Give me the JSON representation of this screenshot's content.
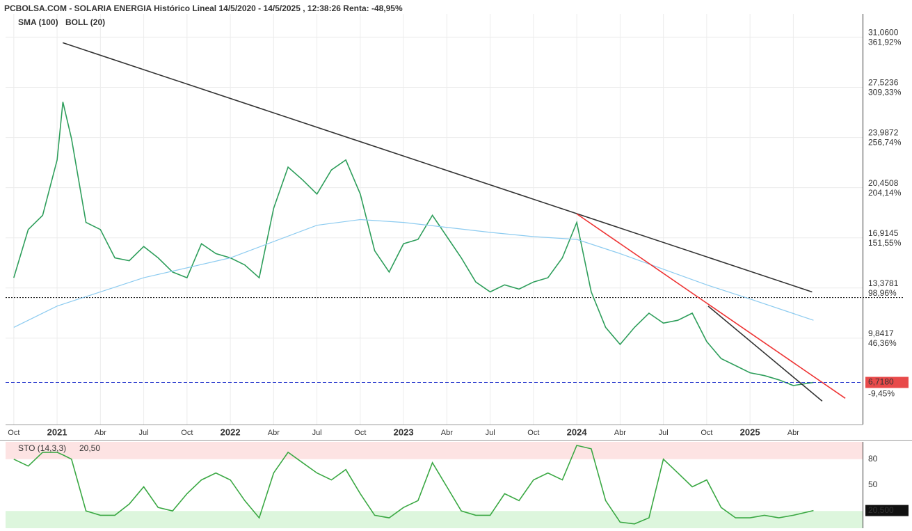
{
  "chart_data": [
    {
      "type": "line",
      "title": "PCBOLSA.COM - SOLARIA ENERGIA Histórico Lineal 14/5/2020 - 14/5/2025 , 12:38:26 Renta: -48,95%",
      "boll_label": "BOLL (20)",
      "xlim": [
        -3.57,
        55.8
      ],
      "xticks": [
        {
          "value": -3,
          "label": "Oct"
        },
        {
          "value": 0,
          "label": "2021"
        },
        {
          "value": 3,
          "label": "Abr"
        },
        {
          "value": 6,
          "label": "Jul"
        },
        {
          "value": 9,
          "label": "Oct"
        },
        {
          "value": 12,
          "label": "2022"
        },
        {
          "value": 15,
          "label": "Abr"
        },
        {
          "value": 18,
          "label": "Jul"
        },
        {
          "value": 21,
          "label": "Oct"
        },
        {
          "value": 24,
          "label": "2023"
        },
        {
          "value": 27,
          "label": "Abr"
        },
        {
          "value": 30,
          "label": "Jul"
        },
        {
          "value": 33,
          "label": "Oct"
        },
        {
          "value": 36,
          "label": "2024"
        },
        {
          "value": 39,
          "label": "Abr"
        },
        {
          "value": 42,
          "label": "Jul"
        },
        {
          "value": 45,
          "label": "Oct"
        },
        {
          "value": 48,
          "label": "2025"
        },
        {
          "value": 51,
          "label": "Abr"
        }
      ],
      "ylim": [
        3.75,
        32.7
      ],
      "yticks": [
        {
          "value": 31.06,
          "label": "31,0600"
        },
        {
          "value": 27.5236,
          "label": "27,5236"
        },
        {
          "value": 23.9872,
          "label": "23,9872"
        },
        {
          "value": 20.4508,
          "label": "20,4508"
        },
        {
          "value": 16.9145,
          "label": "16,9145"
        },
        {
          "value": 13.3781,
          "label": "13,3781"
        },
        {
          "value": 9.8417,
          "label": "9,8417"
        }
      ],
      "ytick_pct_labels": [
        "361,92%",
        "309,33%",
        "256,74%",
        "204,14%",
        "151,55%",
        "98,96%",
        "46,36%"
      ],
      "grid": true,
      "ref_line": 12.7,
      "last": {
        "value": 6.718,
        "label": "6,7180",
        "change_label": "-9,45%"
      },
      "series": [
        {
          "color": "#2e9e5b",
          "x": [
            -3,
            -2,
            -1,
            0,
            0.4,
            1,
            2,
            3,
            4,
            5,
            6,
            7,
            8,
            9,
            10,
            11,
            12,
            13,
            14,
            15,
            16,
            17,
            18,
            19,
            20,
            21,
            22,
            23,
            24,
            25,
            26,
            27,
            28,
            29,
            30,
            31,
            32,
            33,
            34,
            35,
            36,
            37,
            38,
            39,
            40,
            41,
            42,
            43,
            44,
            45,
            46,
            47,
            48,
            49,
            50,
            51,
            52.4
          ],
          "values": [
            14.1,
            17.5,
            18.5,
            22.4,
            26.5,
            23.9,
            18,
            17.5,
            15.5,
            15.3,
            16.3,
            15.5,
            14.5,
            14.1,
            16.5,
            15.8,
            15.5,
            15,
            14.1,
            19,
            21.9,
            21,
            20,
            21.7,
            22.4,
            20,
            16,
            14.5,
            16.5,
            16.8,
            18.5,
            17,
            15.5,
            13.8,
            13.1,
            13.6,
            13.3,
            13.8,
            14.1,
            15.5,
            18,
            13.1,
            10.6,
            9.4,
            10.6,
            11.6,
            10.9,
            11.1,
            11.6,
            9.6,
            8.4,
            7.9,
            7.4,
            7.2,
            6.9,
            6.5,
            6.718
          ]
        },
        {
          "name": "SMA (100)",
          "color": "#8ccbf0",
          "x": [
            -3,
            0,
            6,
            12,
            18,
            21,
            24,
            30,
            33,
            36,
            39,
            45,
            48,
            52.4
          ],
          "values": [
            10.6,
            12.1,
            14.1,
            15.5,
            17.8,
            18.2,
            18,
            17.3,
            17,
            16.8,
            15.8,
            13.6,
            12.6,
            11.1
          ]
        }
      ],
      "trendlines": [
        {
          "color": "#333333",
          "x": [
            0.39,
            52.3
          ],
          "y": [
            30.67,
            13.1
          ]
        },
        {
          "color": "#ee3333",
          "x": [
            36.0,
            54.6
          ],
          "y": [
            18.6,
            5.6
          ]
        },
        {
          "color": "#333333",
          "x": [
            45.1,
            53.0
          ],
          "y": [
            12.1,
            5.4
          ]
        }
      ]
    },
    {
      "type": "line",
      "title": "STO (14,3,3)",
      "value_label": "20,50",
      "xlim": [
        -3.57,
        55.8
      ],
      "ylim": [
        0,
        100
      ],
      "yticks": [
        80,
        50
      ],
      "bands": [
        {
          "from": 80,
          "to": 100,
          "color": "#fde3e3"
        },
        {
          "from": 0,
          "to": 20,
          "color": "#ddf6dd"
        }
      ],
      "last": {
        "value": 20.5,
        "label": "20,500"
      },
      "series": [
        {
          "color": "#3aa843",
          "x": [
            -3,
            -2,
            -1,
            0,
            0.4,
            1,
            2,
            3,
            4,
            5,
            6,
            7,
            8,
            9,
            10,
            11,
            12,
            13,
            14,
            15,
            16,
            17,
            18,
            19,
            20,
            21,
            22,
            23,
            24,
            25,
            26,
            27,
            28,
            29,
            30,
            31,
            32,
            33,
            34,
            35,
            36,
            37,
            38,
            39,
            40,
            41,
            42,
            43,
            44,
            45,
            46,
            47,
            48,
            49,
            50,
            51,
            52.4
          ],
          "values": [
            80,
            72,
            88,
            88,
            85,
            80,
            20,
            15,
            15,
            28,
            48,
            24,
            20,
            40,
            56,
            64,
            56,
            32,
            12,
            64,
            88,
            76,
            64,
            56,
            68,
            40,
            15,
            12,
            24,
            32,
            76,
            48,
            20,
            15,
            15,
            40,
            32,
            56,
            64,
            56,
            96,
            92,
            32,
            7,
            5,
            12,
            80,
            64,
            48,
            56,
            24,
            12,
            12,
            15,
            12,
            15,
            20.5
          ]
        }
      ]
    }
  ]
}
